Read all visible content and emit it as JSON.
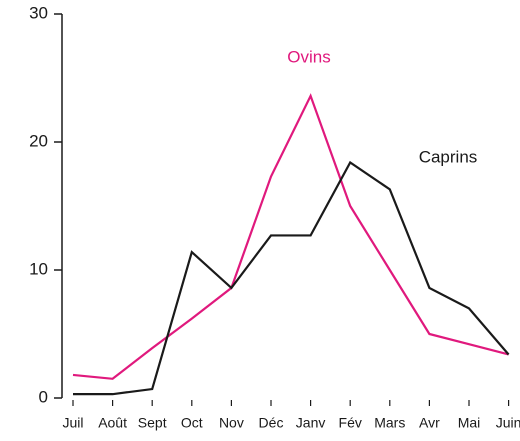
{
  "chart_data": {
    "type": "line",
    "categories": [
      "Juil",
      "Août",
      "Sept",
      "Oct",
      "Nov",
      "Déc",
      "Janv",
      "Fév",
      "Mars",
      "Avr",
      "Mai",
      "Juin"
    ],
    "series": [
      {
        "name": "Ovins",
        "color": "#e0197d",
        "values": [
          1.8,
          1.5,
          3.9,
          6.2,
          8.6,
          17.3,
          23.6,
          15.0,
          10.0,
          5.0,
          4.2,
          3.4
        ]
      },
      {
        "name": "Caprins",
        "color": "#1a1a1a",
        "values": [
          0.3,
          0.3,
          0.7,
          11.4,
          8.6,
          12.7,
          12.7,
          18.4,
          16.3,
          8.6,
          7.0,
          3.4
        ]
      }
    ],
    "ylim": [
      0,
      30
    ],
    "yticks": [
      0,
      10,
      20,
      30
    ],
    "grid": false
  }
}
